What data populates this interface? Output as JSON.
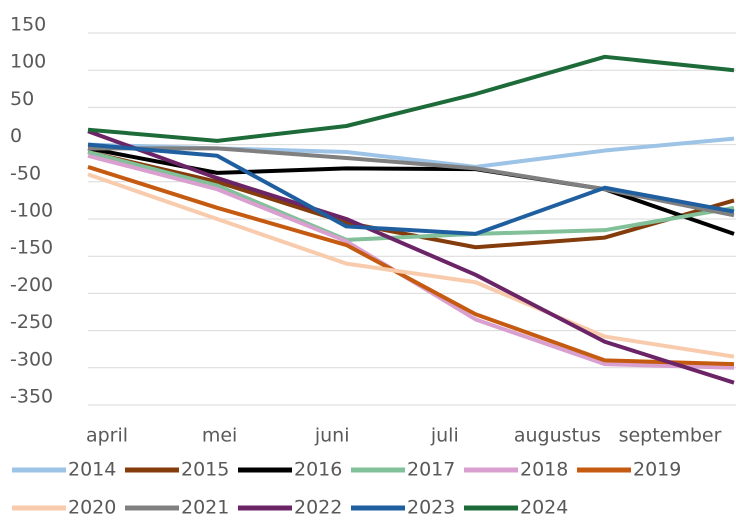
{
  "chart_data": {
    "type": "line",
    "categories": [
      "april",
      "mei",
      "juni",
      "juli",
      "augustus",
      "september"
    ],
    "series": [
      {
        "name": "2014",
        "color": "#9dc3e6",
        "values": [
          0,
          -5,
          -10,
          -30,
          -8,
          8
        ]
      },
      {
        "name": "2015",
        "color": "#843c0c",
        "values": [
          -10,
          -50,
          -105,
          -138,
          -125,
          -75
        ]
      },
      {
        "name": "2016",
        "color": "#000000",
        "values": [
          -5,
          -38,
          -32,
          -33,
          -60,
          -120
        ]
      },
      {
        "name": "2017",
        "color": "#82c09a",
        "values": [
          -10,
          -55,
          -128,
          -120,
          -115,
          -85
        ]
      },
      {
        "name": "2018",
        "color": "#d9a0cf",
        "values": [
          -15,
          -60,
          -130,
          -235,
          -295,
          -300
        ]
      },
      {
        "name": "2019",
        "color": "#c55a11",
        "values": [
          -30,
          -85,
          -135,
          -228,
          -290,
          -295
        ]
      },
      {
        "name": "2020",
        "color": "#f8cbad",
        "values": [
          -40,
          -100,
          -160,
          -185,
          -258,
          -285
        ]
      },
      {
        "name": "2021",
        "color": "#808080",
        "values": [
          -5,
          -5,
          -18,
          -32,
          -60,
          -95
        ]
      },
      {
        "name": "2022",
        "color": "#6b2466",
        "values": [
          18,
          -45,
          -100,
          -175,
          -265,
          -320
        ]
      },
      {
        "name": "2023",
        "color": "#1f5fa0",
        "values": [
          0,
          -15,
          -110,
          -120,
          -58,
          -90
        ]
      },
      {
        "name": "2024",
        "color": "#1e6b3a",
        "values": [
          20,
          5,
          25,
          68,
          118,
          100
        ]
      }
    ],
    "ylim": [
      -350,
      150
    ],
    "yticks": [
      150,
      100,
      50,
      0,
      -50,
      -100,
      -150,
      -200,
      -250,
      -300,
      -350
    ],
    "grid": true,
    "legend": "bottom"
  }
}
